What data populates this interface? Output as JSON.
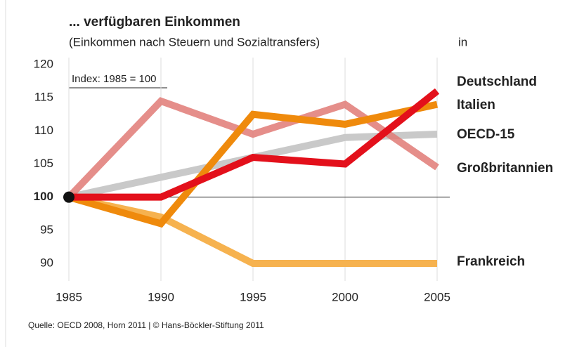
{
  "chart_data": {
    "type": "line",
    "title": "... verfügbaren Einkommen",
    "subtitle": "(Einkommen nach Steuern und Sozialtransfers)",
    "unit_note": "in",
    "annotation": "Index: 1985 = 100",
    "source": "Quelle: OECD 2008, Horn 2011 | © Hans-Böckler-Stiftung 2011",
    "x": [
      1985,
      1990,
      1995,
      2000,
      2005
    ],
    "xlim": [
      1985,
      2005
    ],
    "xticks": [
      1985,
      1990,
      1995,
      2000,
      2005
    ],
    "ylim": [
      90,
      120
    ],
    "yticks": [
      90,
      95,
      100,
      105,
      110,
      115,
      120
    ],
    "grid": true,
    "series": [
      {
        "name": "Frankreich",
        "color": "#f6b24f",
        "values": [
          100,
          97,
          90,
          90,
          90
        ]
      },
      {
        "name": "OECD-15",
        "color": "#c9c9c9",
        "values": [
          100,
          103,
          106,
          109,
          109.5
        ]
      },
      {
        "name": "Großbritannien",
        "color": "#e07a76",
        "values": [
          100,
          114.5,
          109.5,
          114,
          104.5
        ]
      },
      {
        "name": "Italien",
        "color": "#ef8a0c",
        "values": [
          100,
          96,
          112.5,
          111,
          114
        ]
      },
      {
        "name": "Deutschland",
        "color": "#e3101b",
        "values": [
          100,
          100,
          106,
          105,
          116
        ]
      }
    ]
  }
}
